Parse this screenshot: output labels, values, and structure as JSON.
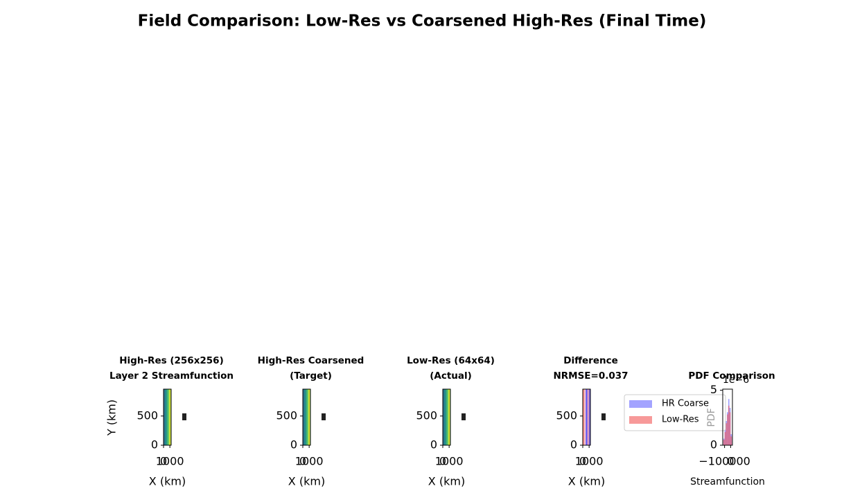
{
  "title": "Field Comparison: Low-Res vs Coarsened High-Res (Final Time)",
  "chart_data": [
    {
      "type": "image",
      "title": [
        "High-Res (256x256)",
        "Layer 2 Streamfunction"
      ],
      "xlabel": "X (km)",
      "ylabel": "Y (km)",
      "xlim": [
        0,
        1200
      ],
      "ylim": [
        0,
        960
      ],
      "xticks": [
        0,
        1000
      ],
      "yticks": [
        0,
        500
      ],
      "colormap": "viridis"
    },
    {
      "type": "image",
      "title": [
        "High-Res Coarsened",
        "(Target)"
      ],
      "xlabel": "X (km)",
      "xlim": [
        0,
        1200
      ],
      "ylim": [
        0,
        960
      ],
      "xticks": [
        0,
        1000
      ],
      "yticks": [
        0,
        500
      ],
      "colormap": "viridis"
    },
    {
      "type": "image",
      "title": [
        "Low-Res (64x64)",
        "(Actual)"
      ],
      "xlabel": "X (km)",
      "xlim": [
        0,
        1200
      ],
      "ylim": [
        0,
        960
      ],
      "xticks": [
        0,
        1000
      ],
      "yticks": [
        0,
        500
      ],
      "colormap": "viridis"
    },
    {
      "type": "image",
      "title": [
        "Difference",
        "NRMSE=0.037"
      ],
      "xlabel": "X (km)",
      "xlim": [
        0,
        1200
      ],
      "ylim": [
        0,
        960
      ],
      "xticks": [
        0,
        1000
      ],
      "yticks": [
        0,
        500
      ],
      "colormap": "bwr"
    },
    {
      "type": "histogram",
      "title": [
        "PDF Comparison"
      ],
      "xlabel": "Streamfunction",
      "ylabel": "PDF",
      "y_offset_label": "1e−6",
      "xlim": [
        -130000,
        30000
      ],
      "ylim": [
        0,
        5.1e-06
      ],
      "xticks": [
        {
          "value": -100000,
          "label": "−100000"
        },
        0
      ],
      "yticks": [
        0,
        {
          "value": 5e-06,
          "label": "5"
        }
      ],
      "bins": [
        -120000,
        -100000,
        -80000,
        -60000,
        -40000,
        -20000,
        0,
        20000
      ],
      "series": [
        {
          "name": "HR Coarse",
          "color": "#6666ff",
          "values": [
            6e-07,
            1.4e-06,
            2.2e-06,
            3e-06,
            4.2e-06,
            3.4e-06,
            1e-06
          ]
        },
        {
          "name": "Low-Res",
          "color": "#f25555",
          "values": [
            5e-07,
            1.2e-06,
            2e-06,
            2.8e-06,
            3.6e-06,
            3e-06,
            8e-07
          ]
        }
      ],
      "legend": "upper left"
    }
  ]
}
